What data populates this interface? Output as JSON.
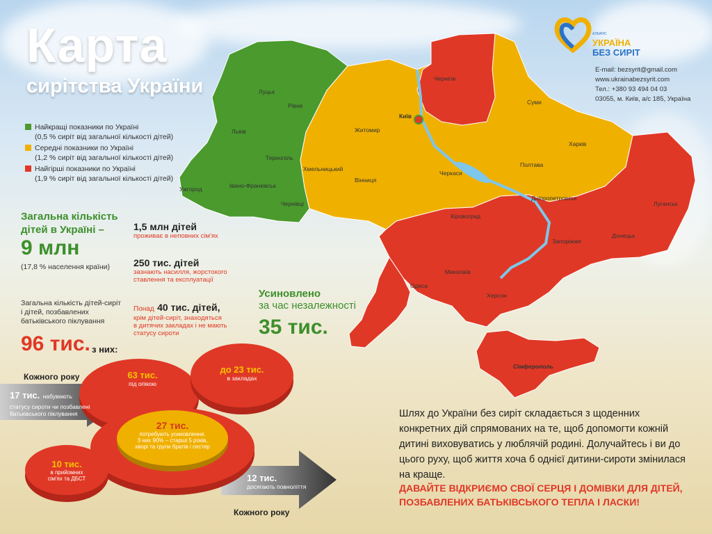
{
  "header": {
    "title": "Карта",
    "subtitle": "сирітства України"
  },
  "logo": {
    "small_text": "АЛЬЯНС",
    "name_line1": "УКРАЇНА",
    "name_line2": "БЕЗ СИРІТ"
  },
  "contacts": {
    "email": "E-mail: bezsyrit@gmail.com",
    "site": "www.ukrainabezsyrit.com",
    "phone": "Тел.: +380 93 494 04 03",
    "address": "03055, м. Київ, а/с 185, Україна"
  },
  "legend": [
    {
      "label": "Найкращі показники по Україні",
      "detail": "(0,5 % сиріт від загальної кількості дітей)",
      "color": "#4a9a2e"
    },
    {
      "label": "Середні показники по Україні",
      "detail": "(1,2 % сиріт від загальної кількості дітей)",
      "color": "#f0b000"
    },
    {
      "label": "Найгірші показники по Україні",
      "detail": "(1,9 % сиріт від загальної кількості дітей)",
      "color": "#e03826"
    }
  ],
  "stats": {
    "total_label_1": "Загальна кількість",
    "total_label_2": "дітей в Україні –",
    "total_value": "9 млн",
    "total_note": "(17,8 % населення країни)",
    "s1_value": "1,5 млн дітей",
    "s1_note": "проживає в неповних сім'ях",
    "s2_value": "250 тис. дітей",
    "s2_note_1": "зазнають насилля, жорстокого",
    "s2_note_2": "ставлення та експлуатації",
    "s3_prefix": "Понад",
    "s3_value": "40 тис. дітей,",
    "s3_note_1": "крім дітей-сиріт, знаходяться",
    "s3_note_2": "в дитячих закладах і не мають",
    "s3_note_3": "статусу сироти",
    "orphans_label_1": "Загальна кількість дітей-сиріт",
    "orphans_label_2": "і дітей, позбавлених",
    "orphans_label_3": "батьківського піклування",
    "orphans_value": "96 тис.",
    "orphans_of": "з них:",
    "adopted_label_1": "Усиновлено",
    "adopted_label_2": "за час незалежності",
    "adopted_value": "35 тис."
  },
  "flow": {
    "each_year_top": "Кожного року",
    "in_value": "17 тис.",
    "in_note_1": "набувають",
    "in_note_2": "статусу сироти чи позбавлені",
    "in_note_3": "батьківського піклування",
    "guardianship_value": "63 тис.",
    "guardianship_note": "під опікою",
    "institutions_value": "до 23 тис.",
    "institutions_note": "в закладах",
    "adoption_value": "27 тис.",
    "adoption_note_1": "потребують усиновлення.",
    "adoption_note_2": "З них 90% – старші 5 років,",
    "adoption_note_3": "хворі та групи братів і сестер",
    "foster_value": "10 тис.",
    "foster_note_1": "в прийомних",
    "foster_note_2": "сім'ях та ДБСТ",
    "out_value": "12 тис.",
    "out_note": "досягають повноліття",
    "each_year_bottom": "Кожного року"
  },
  "map_labels": [
    "Луцьк",
    "Рівне",
    "Львів",
    "Тернопіль",
    "Ужгород",
    "Івано-Франківськ",
    "Чернівці",
    "Хмельницький",
    "Житомир",
    "Вінниця",
    "Київ",
    "Чернігів",
    "Суми",
    "Харків",
    "Полтава",
    "Черкаси",
    "Кіровоград",
    "Дніпропетровськ",
    "Луганськ",
    "Донецьк",
    "Запоріжжя",
    "Миколаїв",
    "Одеса",
    "Херсон",
    "Сімферополь"
  ],
  "paragraph": "Шлях до України без сиріт складається з щоденних конкретних дій спрямованих на те, щоб допомогти кожній дитині виховуватись у люблячій родині. Долучайтесь і ви до цього руху, щоб життя хоча б однієї дитини-сироти змінилася на краще.",
  "call_to_action": "ДАВАЙТЕ ВІДКРИЄМО СВОЇ СЕРЦЯ І ДОМІВКИ ДЛЯ ДІТЕЙ, ПОЗБАВЛЕНИХ БАТЬКІВСЬКОГО ТЕПЛА І ЛАСКИ!",
  "colors": {
    "green": "#4a9a2e",
    "yellow": "#f0b000",
    "red": "#e03826",
    "water": "#7ec6ea"
  }
}
